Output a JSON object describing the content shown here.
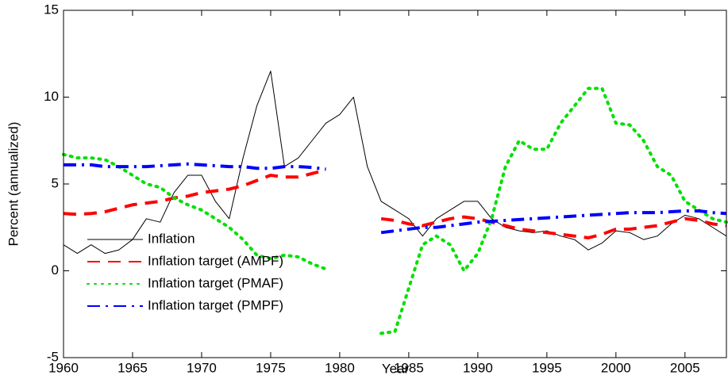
{
  "chart_data": {
    "type": "line",
    "xlabel": "Year",
    "ylabel": "Percent (annualized)",
    "x": [
      1960,
      1961,
      1962,
      1963,
      1964,
      1965,
      1966,
      1967,
      1968,
      1969,
      1970,
      1971,
      1972,
      1973,
      1974,
      1975,
      1976,
      1977,
      1978,
      1979,
      1980,
      1981,
      1982,
      1983,
      1984,
      1985,
      1986,
      1987,
      1988,
      1989,
      1990,
      1991,
      1992,
      1993,
      1994,
      1995,
      1996,
      1997,
      1998,
      1999,
      2000,
      2001,
      2002,
      2003,
      2004,
      2005,
      2006,
      2007,
      2008
    ],
    "series": [
      {
        "name": "Inflation",
        "color": "#000000",
        "linestyle": "solid",
        "linewidth": 1,
        "values": [
          1.5,
          1.0,
          1.5,
          1.0,
          1.2,
          1.8,
          3.0,
          2.8,
          4.5,
          5.5,
          5.5,
          4.0,
          3.0,
          6.5,
          9.5,
          11.5,
          6.0,
          6.5,
          7.5,
          8.5,
          9.0,
          10.0,
          6.0,
          4.0,
          3.5,
          3.0,
          2.0,
          3.0,
          3.5,
          4.0,
          4.0,
          3.0,
          2.5,
          2.3,
          2.2,
          2.3,
          2.0,
          1.8,
          1.2,
          1.6,
          2.3,
          2.2,
          1.8,
          2.0,
          2.7,
          3.2,
          3.0,
          2.5,
          2.0
        ]
      },
      {
        "name": "Inflation target (AMPF)",
        "color": "#ff0000",
        "linestyle": "dashed",
        "linewidth": 4,
        "values": [
          3.3,
          3.25,
          3.3,
          3.4,
          3.6,
          3.8,
          3.9,
          4.0,
          4.2,
          4.3,
          4.5,
          4.6,
          4.7,
          4.9,
          5.2,
          5.5,
          5.4,
          5.4,
          5.6,
          5.8,
          null,
          null,
          null,
          3.0,
          2.9,
          2.7,
          2.6,
          2.8,
          3.0,
          3.1,
          3.0,
          2.8,
          2.6,
          2.4,
          2.3,
          2.2,
          2.1,
          2.0,
          1.9,
          2.1,
          2.4,
          2.4,
          2.5,
          2.6,
          2.8,
          3.0,
          2.9,
          2.7,
          2.6
        ]
      },
      {
        "name": "Inflation target (PMAF)",
        "color": "#00e000",
        "linestyle": "dotted",
        "linewidth": 4,
        "values": [
          6.7,
          6.5,
          6.5,
          6.4,
          6.0,
          5.5,
          5.0,
          4.8,
          4.2,
          3.8,
          3.5,
          3.0,
          2.5,
          1.8,
          0.9,
          0.7,
          0.9,
          0.8,
          0.4,
          0.1,
          null,
          null,
          null,
          -3.6,
          -3.5,
          -1.0,
          1.5,
          2.0,
          1.5,
          0.0,
          1.0,
          3.0,
          6.0,
          7.5,
          7.0,
          7.0,
          8.5,
          9.5,
          10.5,
          10.5,
          8.5,
          8.4,
          7.5,
          6.0,
          5.5,
          4.0,
          3.5,
          3.0,
          2.8
        ]
      },
      {
        "name": "Inflation target (PMPF)",
        "color": "#0000ff",
        "linestyle": "dashdot",
        "linewidth": 4,
        "values": [
          6.1,
          6.1,
          6.1,
          6.0,
          6.0,
          6.0,
          6.0,
          6.05,
          6.1,
          6.15,
          6.1,
          6.05,
          6.0,
          6.0,
          5.9,
          5.9,
          6.0,
          6.0,
          5.95,
          5.85,
          null,
          null,
          null,
          2.2,
          2.3,
          2.4,
          2.5,
          2.5,
          2.6,
          2.7,
          2.8,
          2.85,
          2.9,
          2.95,
          3.0,
          3.05,
          3.1,
          3.15,
          3.2,
          3.25,
          3.3,
          3.35,
          3.35,
          3.35,
          3.4,
          3.45,
          3.45,
          3.35,
          3.3
        ]
      }
    ],
    "xlim": [
      1960,
      2008
    ],
    "xticks": [
      1960,
      1965,
      1970,
      1975,
      1980,
      1985,
      1990,
      1995,
      2000,
      2005
    ],
    "ylim": [
      -5,
      15
    ],
    "yticks": [
      -5,
      0,
      5,
      10,
      15
    ],
    "grid": false,
    "legend": "lower left"
  }
}
